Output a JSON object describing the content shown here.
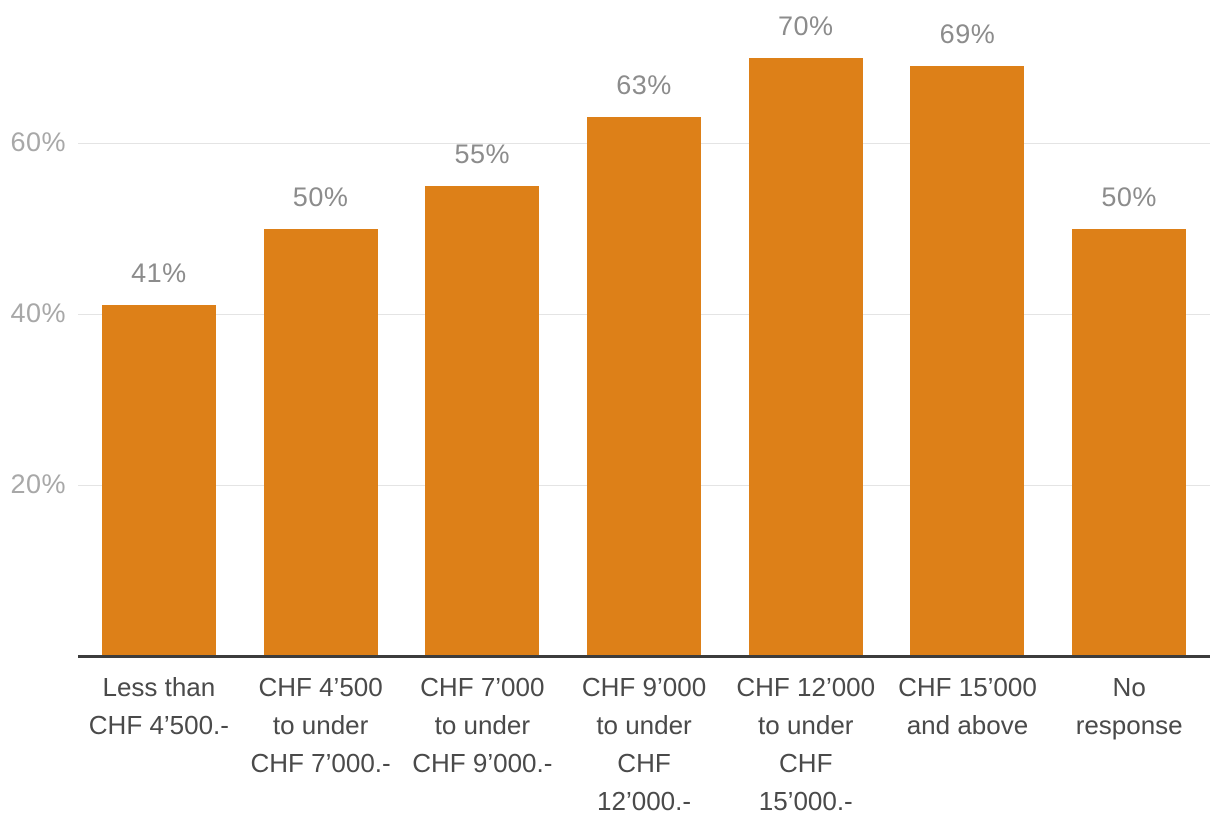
{
  "chart_data": {
    "type": "bar",
    "title": "",
    "xlabel": "",
    "ylabel": "",
    "legend": "none",
    "grid": true,
    "ylim": [
      0,
      77
    ],
    "categories": [
      "Less than CHF 4’500.-",
      "CHF 4’500 to under CHF 7’000.-",
      "CHF 7’000 to under CHF 9’000.-",
      "CHF 9’000 to under CHF 12’000.-",
      "CHF 12’000 to under CHF 15’000.-",
      "CHF 15’000 and above",
      "No response"
    ],
    "category_lines": [
      [
        "Less than",
        "CHF 4’500.-"
      ],
      [
        "CHF 4’500",
        "to under",
        "CHF 7’000.-"
      ],
      [
        "CHF 7’000",
        "to under",
        "CHF 9’000.-"
      ],
      [
        "CHF 9’000",
        "to under",
        "CHF",
        "12’000.-"
      ],
      [
        "CHF 12’000",
        "to under",
        "CHF",
        "15’000.-"
      ],
      [
        "CHF 15’000",
        "and above"
      ],
      [
        "No",
        "response"
      ]
    ],
    "values": [
      41,
      50,
      55,
      63,
      70,
      69,
      50
    ],
    "value_labels": [
      "41%",
      "50%",
      "55%",
      "63%",
      "70%",
      "69%",
      "50%"
    ],
    "yticks": [
      {
        "value": 20,
        "label": "20%"
      },
      {
        "value": 40,
        "label": "40%"
      },
      {
        "value": 60,
        "label": "60%"
      }
    ],
    "colors": {
      "bar": "#DD8018",
      "grid_line": "#E4E4E4",
      "axis_line": "#3C3C3C",
      "tick_label": "#A8A8A8",
      "value_label": "#8C8C8C",
      "category_label": "#4A4A4A",
      "background": "#FFFFFF"
    }
  }
}
